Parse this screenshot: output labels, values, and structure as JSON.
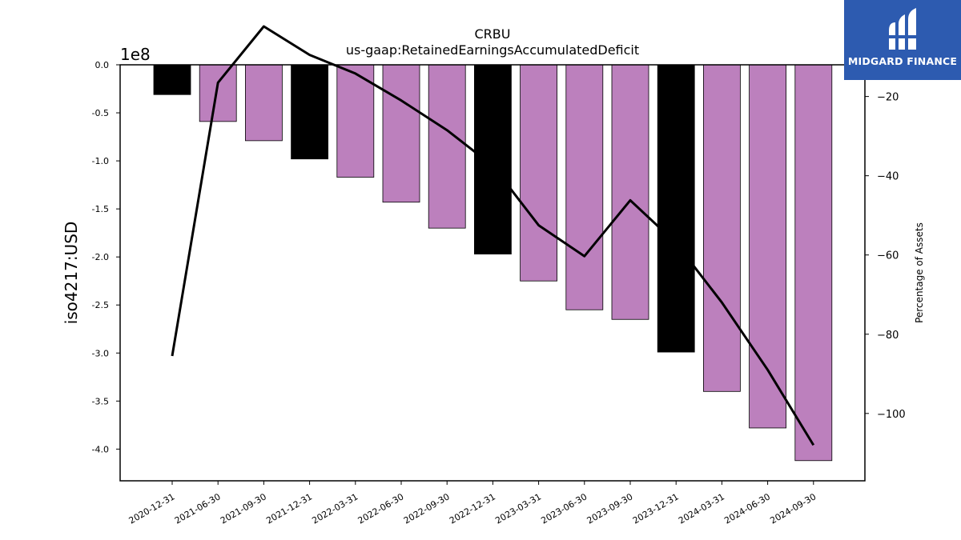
{
  "chart_data": {
    "type": "bar",
    "title": "CRBU",
    "subtitle": "us-gaap:RetainedEarningsAccumulatedDeficit",
    "ylabel": "iso4217:USD",
    "y2label": "Percentage of Assets",
    "offset_label": "1e8",
    "categories": [
      "2020-12-31",
      "2021-06-30",
      "2021-09-30",
      "2021-12-31",
      "2022-03-31",
      "2022-06-30",
      "2022-09-30",
      "2022-12-31",
      "2023-03-31",
      "2023-06-30",
      "2023-09-30",
      "2023-12-31",
      "2024-03-31",
      "2024-06-30",
      "2024-09-30"
    ],
    "series": [
      {
        "values": [
          -0.31,
          -0.59,
          -0.79,
          -0.98,
          -1.17,
          -1.43,
          -1.7,
          -1.97,
          -2.25,
          -2.55,
          -2.65,
          -2.99,
          -3.4,
          -3.78,
          -4.12
        ],
        "colors": [
          "#000000",
          "#bc80bd",
          "#bc80bd",
          "#000000",
          "#bc80bd",
          "#bc80bd",
          "#bc80bd",
          "#000000",
          "#bc80bd",
          "#bc80bd",
          "#bc80bd",
          "#000000",
          "#bc80bd",
          "#bc80bd",
          "#bc80bd"
        ]
      },
      {
        "type": "line",
        "axis": "right",
        "color": "#000000",
        "values": [
          -85.5,
          -16.5,
          -2.3,
          -9.5,
          -14.2,
          -21.0,
          -28.5,
          -37.5,
          -52.5,
          -60.3,
          -46.2,
          -57.0,
          -72.0,
          -89.0,
          -108.0
        ]
      }
    ],
    "ylim": [
      -4.33,
      0
    ],
    "y2lim": [
      -117.0,
      -12.0
    ],
    "yticks": [
      "0.0",
      "-0.5",
      "-1.0",
      "-1.5",
      "-2.0",
      "-2.5",
      "-3.0",
      "-3.5",
      "-4.0"
    ],
    "y2ticks": [
      "−20",
      "−40",
      "−60",
      "−80",
      "−100"
    ]
  },
  "logo": {
    "text": "MIDGARD FINANCE",
    "bg": "#2d5bb0"
  }
}
